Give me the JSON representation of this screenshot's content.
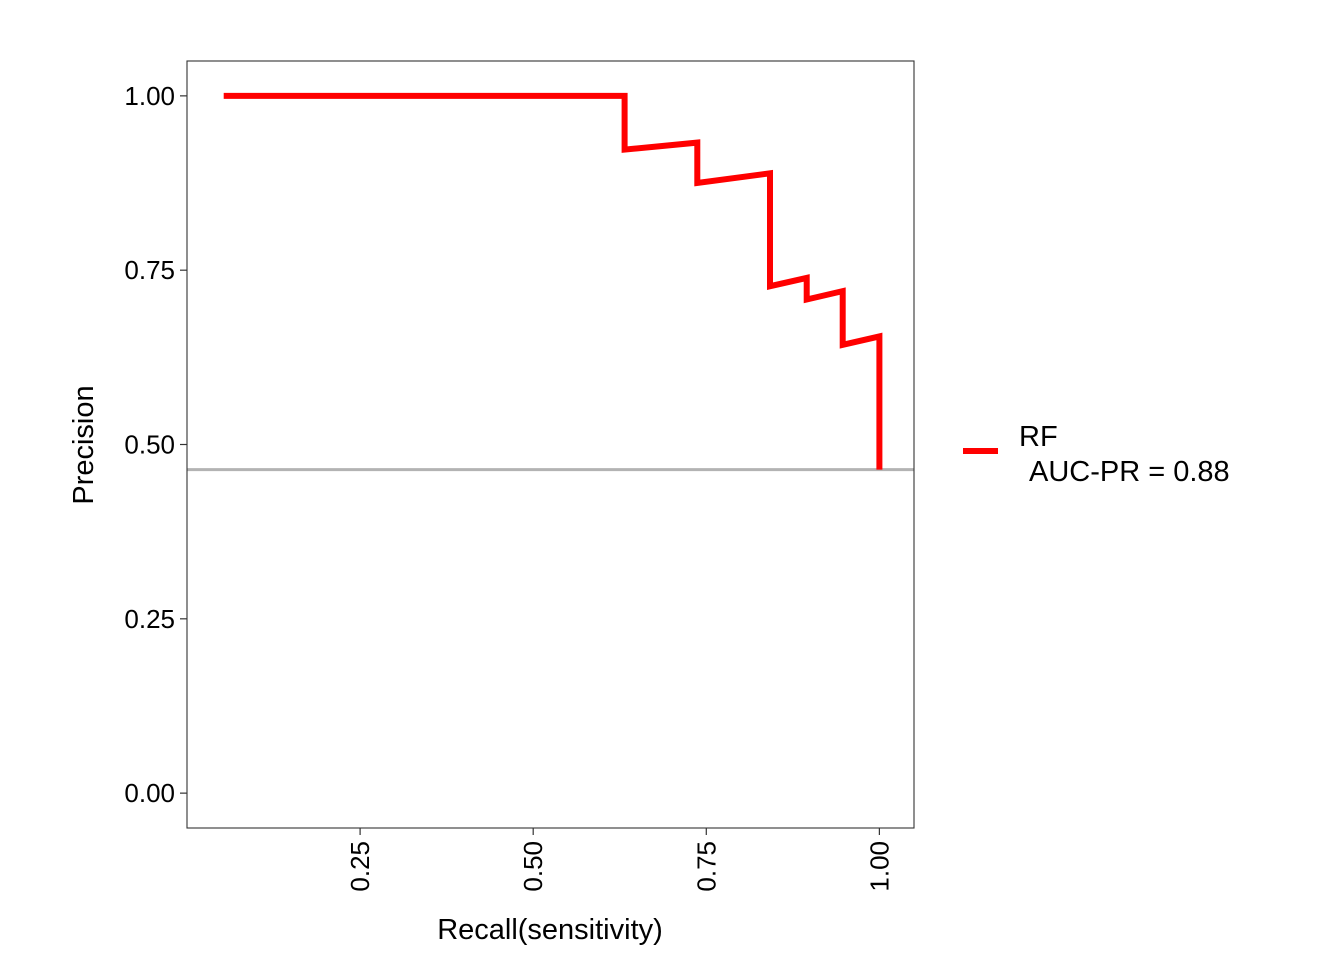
{
  "chart_data": {
    "type": "line",
    "title": "",
    "xlabel": "Recall(sensitivity)",
    "ylabel": "Precision",
    "xlim": [
      0.0,
      1.05
    ],
    "ylim": [
      -0.05,
      1.05
    ],
    "x_ticks": [
      0.25,
      0.5,
      0.75,
      1.0
    ],
    "x_tick_labels": [
      "0.25",
      "0.50",
      "0.75",
      "1.00"
    ],
    "y_ticks": [
      0.0,
      0.25,
      0.5,
      0.75,
      1.0
    ],
    "y_tick_labels": [
      "0.00",
      "0.25",
      "0.50",
      "0.75",
      "1.00"
    ],
    "grid": false,
    "legend_position": "right",
    "baseline": {
      "y": 0.464,
      "color": "#b3b3b3"
    },
    "series": [
      {
        "name": "RF",
        "label_line2": "AUC-PR = 0.88",
        "color": "#ff0000",
        "x": [
          0.053,
          0.632,
          0.632,
          0.737,
          0.737,
          0.842,
          0.842,
          0.895,
          0.895,
          0.947,
          0.947,
          1.0,
          1.0
        ],
        "y": [
          1.0,
          1.0,
          0.923,
          0.933,
          0.875,
          0.889,
          0.727,
          0.739,
          0.708,
          0.72,
          0.643,
          0.655,
          0.464
        ]
      }
    ]
  }
}
